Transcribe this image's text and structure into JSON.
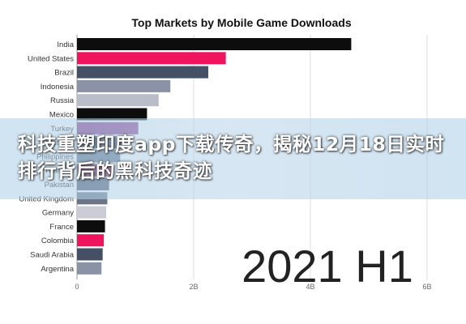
{
  "chart_data": {
    "type": "bar",
    "orientation": "horizontal",
    "title": "Top Markets by Mobile Game Downloads",
    "period_label": "2021 H1",
    "categories": [
      "India",
      "United States",
      "Brazil",
      "Indonesia",
      "Russia",
      "Mexico",
      "Turkey",
      "Vietnam",
      "Philippines",
      "Thailand",
      "Pakistan",
      "United Kingdom",
      "Germany",
      "France",
      "Colombia",
      "Saudi Arabia",
      "Argentina"
    ],
    "values": [
      4.7,
      2.55,
      2.25,
      1.6,
      1.4,
      1.2,
      1.05,
      0.78,
      0.74,
      0.59,
      0.55,
      0.52,
      0.5,
      0.48,
      0.46,
      0.44,
      0.42
    ],
    "colors": [
      "#0d0d0d",
      "#f0135d",
      "#435066",
      "#8a93a6",
      "#b8bdc8",
      "#0d0d0d",
      "#8d3d8f",
      "#64748b",
      "#64748b",
      "#a6336e",
      "#4f5a6e",
      "#6b7588",
      "#c9ccd4",
      "#0d0d0d",
      "#f0135d",
      "#435066",
      "#8a93a6"
    ],
    "x_ticks": [
      "0",
      "2B",
      "4B",
      "6B"
    ],
    "xlim": [
      0,
      6
    ],
    "grid": true
  },
  "overlay": {
    "headline": "科技重塑印度app下载传奇，揭秘12月18日实时排行背后的黑科技奇迹"
  }
}
